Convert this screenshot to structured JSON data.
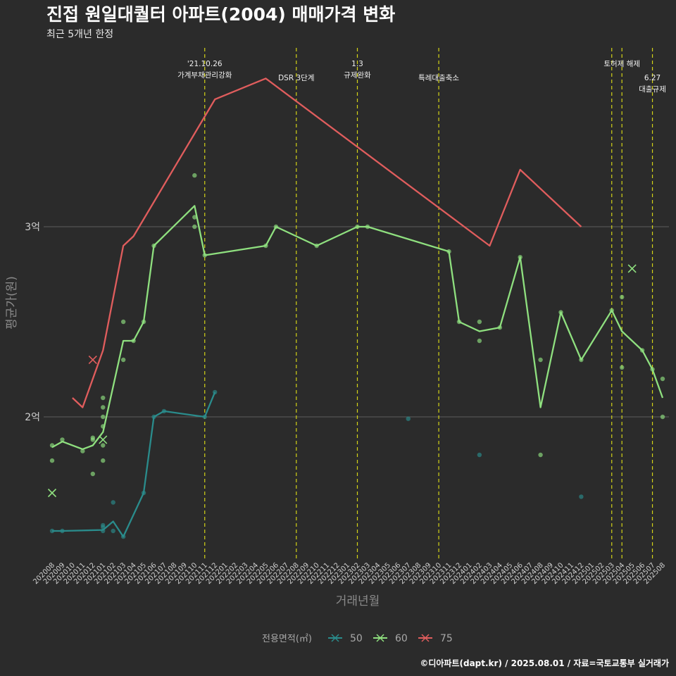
{
  "title": "진접 원일대퀄터 아파트(2004) 매매가격 변화",
  "subtitle": "최근 5개년 한정",
  "caption": "©디아파트(dapt.kr) / 2025.08.01 / 자료=국토교통부 실거래가",
  "chart_data": {
    "type": "line",
    "xlabel": "거래년월",
    "ylabel": "평균가(원)",
    "x_ticks": [
      "202008",
      "202009",
      "202010",
      "202011",
      "202012",
      "202101",
      "202102",
      "202103",
      "202104",
      "202105",
      "202106",
      "202107",
      "202108",
      "202109",
      "202110",
      "202111",
      "202112",
      "202201",
      "202202",
      "202203",
      "202204",
      "202205",
      "202206",
      "202207",
      "202208",
      "202209",
      "202210",
      "202211",
      "202212",
      "202301",
      "202302",
      "202303",
      "202304",
      "202305",
      "202306",
      "202307",
      "202308",
      "202309",
      "202310",
      "202311",
      "202312",
      "202401",
      "202402",
      "202403",
      "202404",
      "202405",
      "202406",
      "202407",
      "202408",
      "202409",
      "202410",
      "202411",
      "202412",
      "202501",
      "202502",
      "202503",
      "202504",
      "202505",
      "202506",
      "202507",
      "202508"
    ],
    "y_ticks": [
      {
        "value": 20000,
        "label": "2억"
      },
      {
        "value": 30000,
        "label": "3억"
      }
    ],
    "y_unit": "만원",
    "ylim": [
      13000,
      38000
    ],
    "grid": true,
    "legend": {
      "title": "전용면적(㎡)",
      "position": "bottom",
      "entries": [
        {
          "label": "50",
          "color": "#2a8c8c"
        },
        {
          "label": "60",
          "color": "#8fe07f"
        },
        {
          "label": "75",
          "color": "#e05d5d"
        }
      ]
    },
    "series": [
      {
        "name": "50",
        "color": "#2a8c8c",
        "line": [
          [
            "202008",
            14000
          ],
          [
            "202009",
            14000
          ],
          [
            "202101",
            14050
          ],
          [
            "202102",
            14500
          ],
          [
            "202103",
            13700
          ],
          [
            "202105",
            16000
          ],
          [
            "202106",
            20000
          ],
          [
            "202107",
            20300
          ],
          [
            "202111",
            20000
          ],
          [
            "202112",
            21300
          ]
        ],
        "points": [
          [
            "202008",
            14000
          ],
          [
            "202009",
            14000
          ],
          [
            "202101",
            14000
          ],
          [
            "202101",
            14200
          ],
          [
            "202101",
            14300
          ],
          [
            "202102",
            14000
          ],
          [
            "202102",
            15500
          ],
          [
            "202103",
            13700
          ],
          [
            "202105",
            16000
          ],
          [
            "202106",
            20000
          ],
          [
            "202107",
            20300
          ],
          [
            "202111",
            20000
          ],
          [
            "202112",
            21300
          ],
          [
            "202307",
            19900
          ],
          [
            "202402",
            18000
          ],
          [
            "202412",
            15800
          ]
        ],
        "cross": []
      },
      {
        "name": "60",
        "color": "#8fe07f",
        "line": [
          [
            "202008",
            18400
          ],
          [
            "202009",
            18700
          ],
          [
            "202011",
            18300
          ],
          [
            "202012",
            18500
          ],
          [
            "202101",
            19200
          ],
          [
            "202103",
            24000
          ],
          [
            "202104",
            24000
          ],
          [
            "202105",
            25000
          ],
          [
            "202106",
            29000
          ],
          [
            "202110",
            31100
          ],
          [
            "202111",
            28500
          ],
          [
            "202205",
            29000
          ],
          [
            "202206",
            30000
          ],
          [
            "202210",
            29000
          ],
          [
            "202302",
            30000
          ],
          [
            "202303",
            30000
          ],
          [
            "202311",
            28700
          ],
          [
            "202312",
            25000
          ],
          [
            "202402",
            24500
          ],
          [
            "202404",
            24700
          ],
          [
            "202406",
            28400
          ],
          [
            "202408",
            20500
          ],
          [
            "202410",
            25500
          ],
          [
            "202412",
            23000
          ],
          [
            "202503",
            25600
          ],
          [
            "202504",
            24500
          ],
          [
            "202506",
            23500
          ],
          [
            "202507",
            22500
          ],
          [
            "202508",
            21000
          ]
        ],
        "points": [
          [
            "202008",
            18500
          ],
          [
            "202008",
            17700
          ],
          [
            "202009",
            18800
          ],
          [
            "202011",
            18200
          ],
          [
            "202012",
            18900
          ],
          [
            "202012",
            18800
          ],
          [
            "202012",
            17000
          ],
          [
            "202101",
            21000
          ],
          [
            "202101",
            20500
          ],
          [
            "202101",
            20000
          ],
          [
            "202101",
            19500
          ],
          [
            "202101",
            18500
          ],
          [
            "202101",
            17700
          ],
          [
            "202103",
            25000
          ],
          [
            "202103",
            23000
          ],
          [
            "202104",
            24000
          ],
          [
            "202105",
            25000
          ],
          [
            "202106",
            29000
          ],
          [
            "202110",
            32700
          ],
          [
            "202110",
            30500
          ],
          [
            "202110",
            30000
          ],
          [
            "202111",
            28500
          ],
          [
            "202205",
            29000
          ],
          [
            "202206",
            30000
          ],
          [
            "202210",
            29000
          ],
          [
            "202302",
            30000
          ],
          [
            "202303",
            30000
          ],
          [
            "202311",
            28700
          ],
          [
            "202312",
            25000
          ],
          [
            "202402",
            25000
          ],
          [
            "202402",
            24000
          ],
          [
            "202404",
            24700
          ],
          [
            "202406",
            28400
          ],
          [
            "202408",
            23000
          ],
          [
            "202408",
            18000
          ],
          [
            "202410",
            25500
          ],
          [
            "202412",
            23000
          ],
          [
            "202503",
            25600
          ],
          [
            "202504",
            26300
          ],
          [
            "202504",
            22600
          ],
          [
            "202506",
            23500
          ],
          [
            "202507",
            22500
          ],
          [
            "202508",
            22000
          ],
          [
            "202508",
            20000
          ]
        ],
        "cross": [
          [
            "202008",
            16000
          ],
          [
            "202101",
            18800
          ],
          [
            "202505",
            27800
          ]
        ]
      },
      {
        "name": "75",
        "color": "#e05d5d",
        "line": [
          [
            "202010",
            21000
          ],
          [
            "202011",
            20500
          ],
          [
            "202101",
            23500
          ],
          [
            "202103",
            29000
          ],
          [
            "202104",
            29500
          ],
          [
            "202112",
            36700
          ],
          [
            "202205",
            37800
          ],
          [
            "202403",
            29000
          ],
          [
            "202406",
            33000
          ],
          [
            "202412",
            30000
          ]
        ],
        "points": [],
        "cross": [
          [
            "202012",
            23000
          ]
        ]
      }
    ],
    "events": [
      {
        "x": "202111",
        "lines": [
          "'21.10.26",
          "가계부채관리강화"
        ],
        "row": 0
      },
      {
        "x": "202208",
        "lines": [
          "DSR 3단계"
        ],
        "row": 1
      },
      {
        "x": "202302",
        "lines": [
          "1.3",
          "규제완화"
        ],
        "row": 0
      },
      {
        "x": "202310",
        "lines": [
          "특례대출축소"
        ],
        "row": 1
      },
      {
        "x": "202503",
        "lines": [
          ""
        ],
        "row": 0
      },
      {
        "x": "202504",
        "lines": [
          "토허제 해제"
        ],
        "row": 0
      },
      {
        "x": "202507",
        "lines": [
          "6.27",
          "대출규제"
        ],
        "row": 1
      }
    ]
  }
}
